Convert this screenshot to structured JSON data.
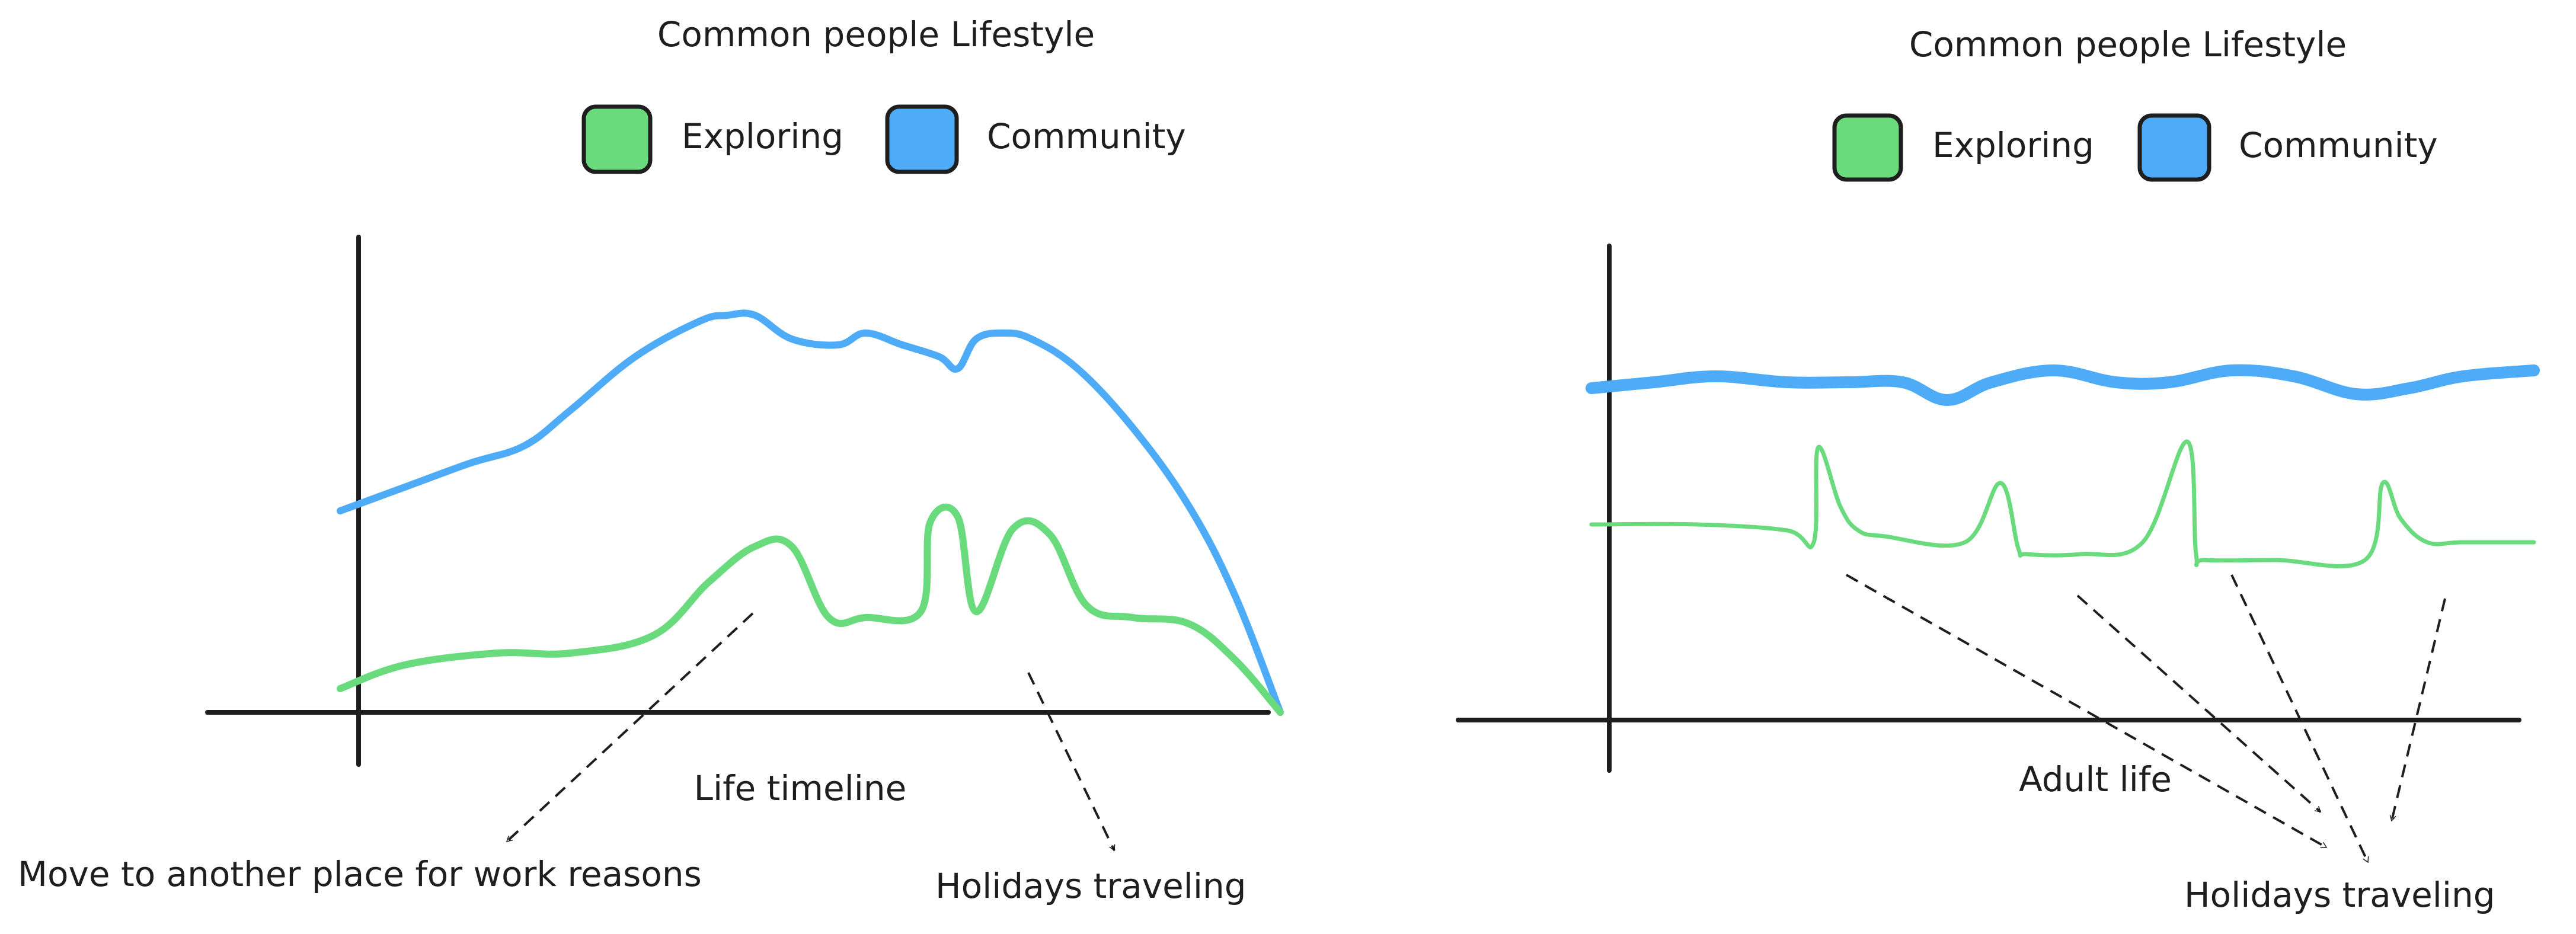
{
  "colors": {
    "exploring": "#69db7c",
    "community": "#4dabf7",
    "ink": "#1e1e1e",
    "background": "#ffffff"
  },
  "chart_data": [
    {
      "type": "line",
      "title": "Common people Lifestyle",
      "xlabel": "Life timeline",
      "ylabel": "",
      "legend": [
        "Exploring",
        "Community"
      ],
      "legend_placement": "top",
      "grid": false,
      "xlim": [
        0,
        100
      ],
      "ylim": [
        0,
        100
      ],
      "series": [
        {
          "name": "Community",
          "x": [
            -2,
            5,
            12,
            18,
            23,
            30,
            37,
            40,
            43,
            47,
            52,
            55,
            59,
            63,
            65,
            67,
            70,
            73,
            78,
            84,
            90,
            95,
            100
          ],
          "y": [
            34,
            38,
            42,
            45,
            51,
            60,
            66,
            67,
            67,
            63,
            62,
            64,
            62,
            60,
            58,
            63,
            64,
            63,
            58,
            48,
            35,
            20,
            0
          ]
        },
        {
          "name": "Exploring",
          "x": [
            -2,
            5,
            15,
            23,
            32,
            38,
            43,
            47,
            51,
            55,
            61,
            62,
            65,
            67,
            71,
            75,
            79,
            84,
            90,
            95,
            100
          ],
          "y": [
            4,
            8,
            10,
            10,
            13,
            22,
            28,
            28,
            16,
            16,
            17,
            32,
            33,
            17,
            31,
            30,
            18,
            16,
            15,
            9,
            0
          ]
        }
      ],
      "annotations": [
        {
          "text": "Move to another place for work reasons",
          "x": 44,
          "y": 22
        },
        {
          "text": "Holidays traveling",
          "x": 73,
          "y": 9
        }
      ]
    },
    {
      "type": "line",
      "title": "Common people Lifestyle",
      "xlabel": "Adult life",
      "ylabel": "",
      "legend": [
        "Exploring",
        "Community"
      ],
      "legend_placement": "top",
      "grid": false,
      "xlim": [
        0,
        100
      ],
      "ylim": [
        0,
        100
      ],
      "series": [
        {
          "name": "Community",
          "x": [
            -2,
            5,
            12,
            20,
            27,
            33,
            38,
            43,
            50,
            57,
            63,
            70,
            77,
            84,
            90,
            96,
            104
          ],
          "y": [
            56,
            57,
            58,
            57,
            57,
            57,
            54,
            57,
            59,
            57,
            57,
            59,
            58,
            55,
            56,
            58,
            59
          ],
          "style": "thick"
        },
        {
          "name": "Exploring",
          "x": [
            -2,
            10,
            20,
            23,
            23.5,
            26,
            28,
            31,
            40,
            44,
            46,
            47,
            53,
            60,
            65,
            66,
            67,
            75,
            85,
            87,
            89,
            92,
            96,
            104
          ],
          "y": [
            33,
            33,
            32,
            30,
            46,
            36,
            32,
            31,
            30,
            40,
            29,
            28,
            28,
            30,
            47,
            28,
            27,
            27,
            27,
            40,
            34,
            30,
            30,
            30
          ]
        }
      ],
      "annotations": [
        {
          "text": "Holidays traveling",
          "x": 23,
          "y": 32
        },
        {
          "text": "Holidays traveling",
          "x": 46,
          "y": 28
        },
        {
          "text": "Holidays traveling",
          "x": 66,
          "y": 46
        },
        {
          "text": "Holidays traveling",
          "x": 89,
          "y": 34
        }
      ]
    }
  ]
}
